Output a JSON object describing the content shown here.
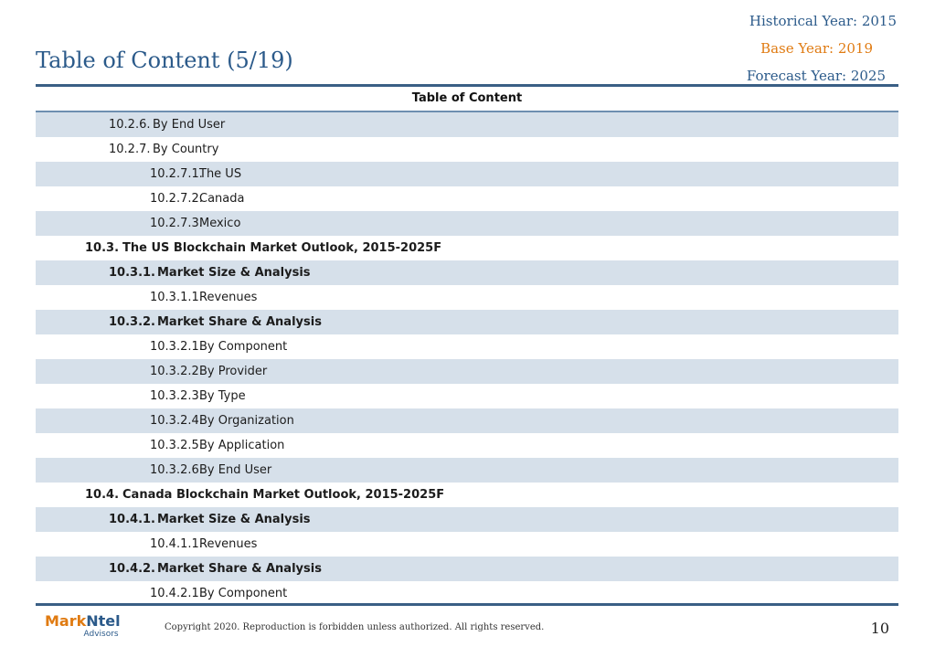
{
  "header": {
    "historical_year": "Historical Year: 2015",
    "base_year": "Base Year: 2019",
    "forecast_year": "Forecast Year: 2025",
    "title": "Table of Content (5/19)",
    "colors": {
      "title": "#2b5a8a",
      "base_year": "#e07b12",
      "row_shade": "#d6e0ea"
    }
  },
  "toc": {
    "header": "Table of Content",
    "rows": [
      {
        "num": "10.2.6.",
        "text": "By End User"
      },
      {
        "num": "10.2.7.",
        "text": "By Country"
      },
      {
        "num": "10.2.7.1.",
        "text": "The US"
      },
      {
        "num": "10.2.7.2.",
        "text": "Canada"
      },
      {
        "num": "10.2.7.3.",
        "text": "Mexico"
      },
      {
        "num": "10.3.",
        "text": "The US Blockchain Market Outlook, 2015-2025F"
      },
      {
        "num": "10.3.1.",
        "text": "Market Size & Analysis"
      },
      {
        "num": "10.3.1.1.",
        "text": "Revenues"
      },
      {
        "num": "10.3.2.",
        "text": "Market Share & Analysis"
      },
      {
        "num": "10.3.2.1.",
        "text": "By Component"
      },
      {
        "num": "10.3.2.2.",
        "text": "By Provider"
      },
      {
        "num": "10.3.2.3.",
        "text": "By Type"
      },
      {
        "num": "10.3.2.4.",
        "text": "By Organization"
      },
      {
        "num": "10.3.2.5.",
        "text": "By Application"
      },
      {
        "num": "10.3.2.6.",
        "text": "By End User"
      },
      {
        "num": "10.4.",
        "text": "Canada Blockchain Market Outlook, 2015-2025F"
      },
      {
        "num": "10.4.1.",
        "text": "Market Size & Analysis"
      },
      {
        "num": "10.4.1.1.",
        "text": "Revenues"
      },
      {
        "num": "10.4.2.",
        "text": "Market Share & Analysis"
      },
      {
        "num": "10.4.2.1.",
        "text": "By Component"
      }
    ]
  },
  "footer": {
    "logo_part1": "Mark",
    "logo_part2": "Ntel",
    "logo_sub": "Advisors",
    "copyright": "Copyright 2020. Reproduction is forbidden unless authorized. All rights reserved.",
    "page_number": "10"
  }
}
